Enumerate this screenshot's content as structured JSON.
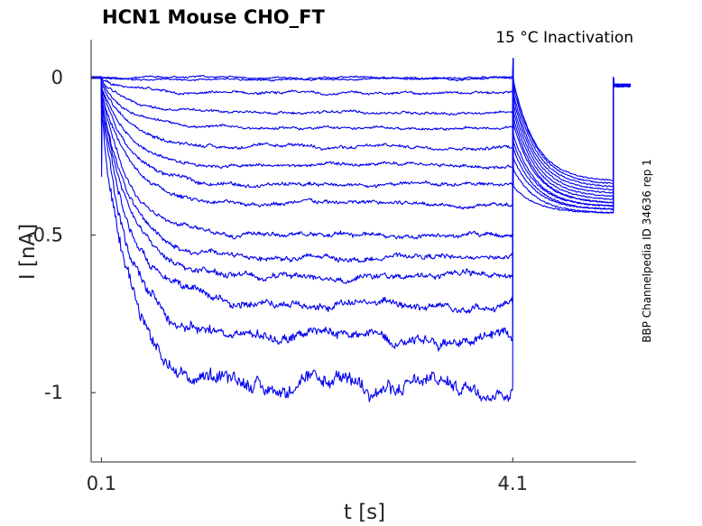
{
  "chart_data": {
    "type": "line",
    "title": "HCN1  Mouse  CHO_FT",
    "subtitle": "15 °C  Inactivation",
    "side_note": "BBP Channelpedia ID 34636 rep 1",
    "xlabel": "t [s]",
    "ylabel": "I [nA]",
    "xlim": [
      0.0,
      5.3
    ],
    "ylim": [
      -1.22,
      0.12
    ],
    "x_ticks": [
      0.1,
      4.1
    ],
    "x_tick_labels": [
      "0.1",
      "4.1"
    ],
    "y_ticks": [
      0,
      -0.5,
      -1
    ],
    "y_tick_labels": [
      "0",
      "-0.5",
      "-1"
    ],
    "grid": false,
    "legend": "none",
    "line_color": "#0000ee",
    "protocol": {
      "step_on": 0.1,
      "step_off": 4.1,
      "final_step": 5.08
    },
    "series": [
      {
        "steady": 0.0,
        "tail": -0.33,
        "noise": 0.003
      },
      {
        "steady": -0.005,
        "tail": -0.34,
        "noise": 0.003
      },
      {
        "steady": -0.05,
        "tail": -0.35,
        "noise": 0.004
      },
      {
        "steady": -0.11,
        "tail": -0.36,
        "noise": 0.004
      },
      {
        "steady": -0.16,
        "tail": -0.37,
        "noise": 0.004
      },
      {
        "steady": -0.22,
        "tail": -0.38,
        "noise": 0.005
      },
      {
        "steady": -0.28,
        "tail": -0.39,
        "noise": 0.005
      },
      {
        "steady": -0.34,
        "tail": -0.4,
        "noise": 0.006
      },
      {
        "steady": -0.4,
        "tail": -0.4,
        "noise": 0.006
      },
      {
        "steady": -0.5,
        "tail": -0.41,
        "noise": 0.007
      },
      {
        "steady": -0.57,
        "tail": -0.41,
        "noise": 0.008
      },
      {
        "steady": -0.63,
        "tail": -0.42,
        "noise": 0.009
      },
      {
        "steady": -0.72,
        "tail": -0.42,
        "noise": 0.012
      },
      {
        "steady": -0.82,
        "tail": -0.43,
        "noise": 0.016
      },
      {
        "steady": -0.98,
        "tail": -0.43,
        "noise": 0.022
      }
    ]
  }
}
